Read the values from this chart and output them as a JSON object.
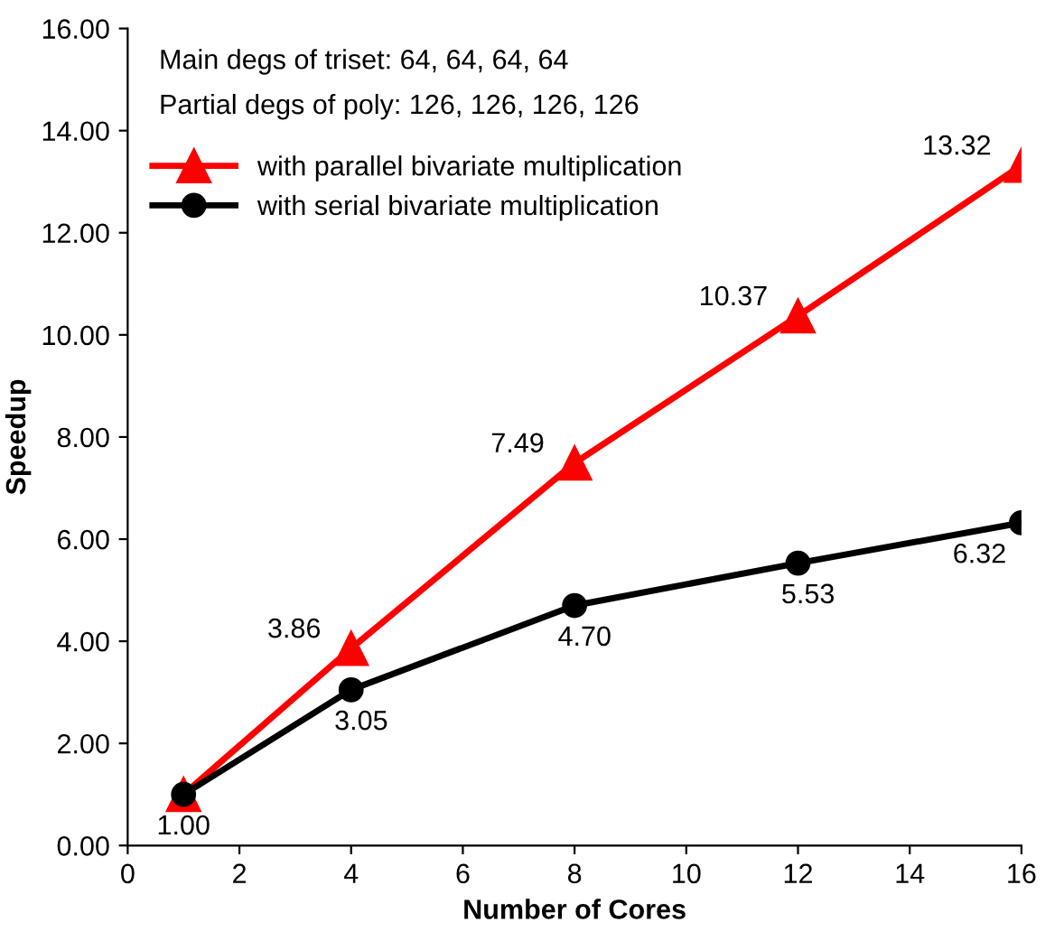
{
  "chart_data": {
    "type": "line",
    "xlabel": "Number of Cores",
    "ylabel": "Speedup",
    "x": [
      1,
      4,
      8,
      12,
      16
    ],
    "series": [
      {
        "name": "with parallel bivariate multiplication",
        "color": "#ff0000",
        "marker": "triangle",
        "values": [
          1.0,
          3.86,
          7.49,
          10.37,
          13.32
        ],
        "value_labels": [
          null,
          "3.86",
          "7.49",
          "10.37",
          "13.32"
        ]
      },
      {
        "name": "with serial bivariate multiplication",
        "color": "#000000",
        "marker": "circle",
        "values": [
          1.0,
          3.05,
          4.7,
          5.53,
          6.32
        ],
        "value_labels": [
          "1.00",
          "3.05",
          "4.70",
          "5.53",
          "6.32"
        ]
      }
    ],
    "annotations": [
      "Main degs of triset: 64, 64, 64, 64",
      "Partial degs of poly: 126, 126, 126, 126"
    ],
    "xlim": [
      0,
      16
    ],
    "ylim": [
      0,
      16
    ],
    "xticks": [
      0,
      2,
      4,
      6,
      8,
      10,
      12,
      14,
      16
    ],
    "yticks": [
      {
        "value": 0,
        "label": "0.00"
      },
      {
        "value": 2,
        "label": "2.00"
      },
      {
        "value": 4,
        "label": "4.00"
      },
      {
        "value": 6,
        "label": "6.00"
      },
      {
        "value": 8,
        "label": "8.00"
      },
      {
        "value": 10,
        "label": "10.00"
      },
      {
        "value": 12,
        "label": "12.00"
      },
      {
        "value": 14,
        "label": "14.00"
      },
      {
        "value": 16,
        "label": "16.00"
      }
    ],
    "grid": false,
    "legend": "top left",
    "line_style": "solid"
  }
}
